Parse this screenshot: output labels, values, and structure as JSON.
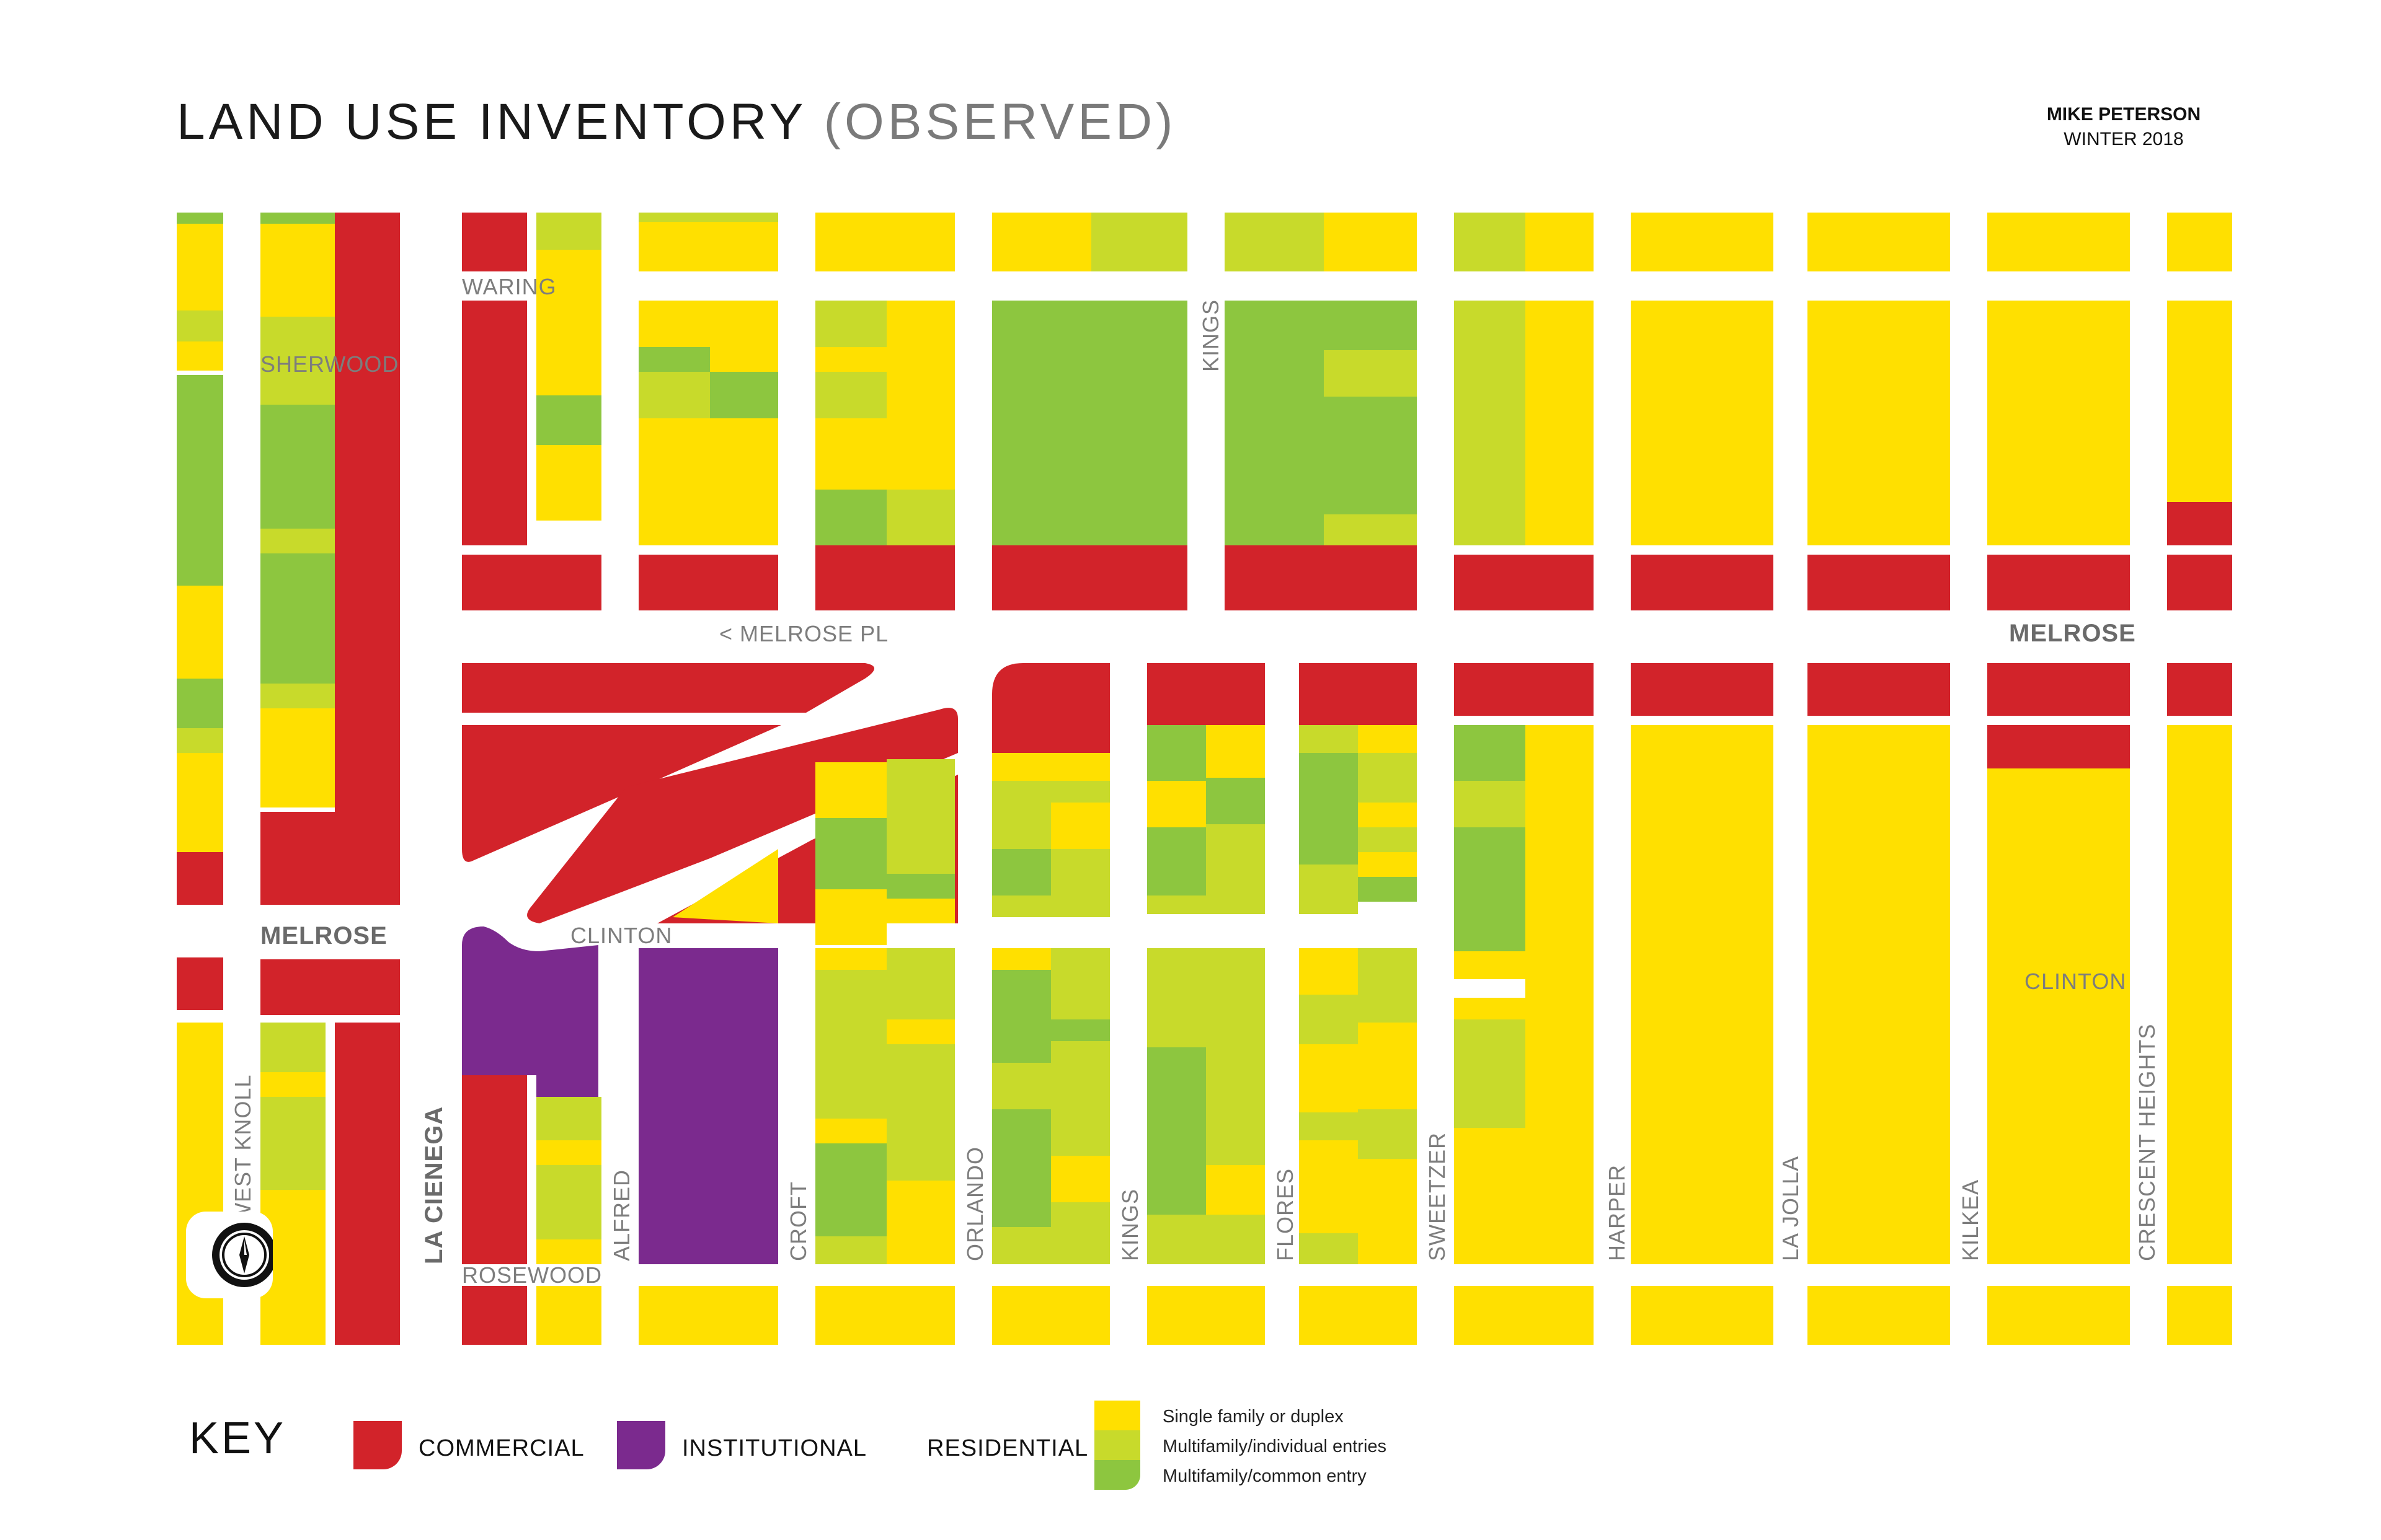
{
  "header": {
    "title": "LAND USE INVENTORY",
    "subtitle": "(OBSERVED)",
    "author": "MIKE PETERSON",
    "season": "WINTER 2018"
  },
  "colors": {
    "commercial": "#d2232a",
    "institutional": "#7b2a8e",
    "single_family": "#ffe000",
    "multifamily_individual": "#c8da2b",
    "multifamily_common": "#8dc63f",
    "street_label": "#7d7d7d"
  },
  "streets": {
    "waring": "WARING",
    "sherwood": "SHERWOOD",
    "melrose_pl": "< MELROSE PL",
    "melrose_east": "MELROSE",
    "melrose_west": "MELROSE",
    "clinton_west": "CLINTON",
    "clinton_east": "CLINTON",
    "rosewood": "ROSEWOOD",
    "west_knoll": "WEST KNOLL",
    "la_cienega": "LA CIENEGA",
    "alfred": "ALFRED",
    "croft": "CROFT",
    "orlando": "ORLANDO",
    "kings_south": "KINGS",
    "kings_north": "KINGS",
    "flores": "FLORES",
    "sweetzer": "SWEETZER",
    "harper": "HARPER",
    "la_jolla": "LA JOLLA",
    "kilkea": "KILKEA",
    "crescent_heights": "CRESCENT HEIGHTS"
  },
  "compass_icon": "compass-north-icon",
  "key": {
    "title": "KEY",
    "commercial": "COMMERCIAL",
    "institutional": "INSTITUTIONAL",
    "residential": "RESIDENTIAL",
    "residential_types": [
      "Single family or duplex",
      "Multifamily/individual entries",
      "Multifamily/common entry"
    ]
  }
}
